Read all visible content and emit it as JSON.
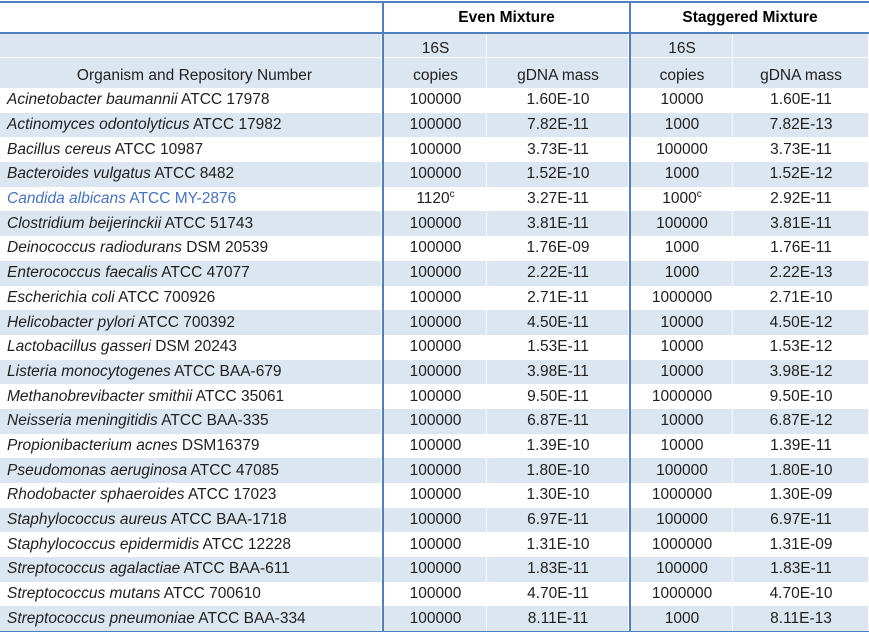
{
  "table": {
    "group_headers": {
      "even": "Even Mixture",
      "staggered": "Staggered Mixture"
    },
    "organism_header": "Organism and Repository Number",
    "subheaders": {
      "copies_line1": "16S",
      "copies_line2": "copies",
      "gdna": "gDNA mass"
    },
    "footnote_marker": "c",
    "colors": {
      "border_blue": "#4F81BD",
      "stripe_fill": "#DCE6F1",
      "highlight_text": "#4472C4",
      "body_text": "#212121"
    },
    "rows": [
      {
        "species": "Acinetobacter baumannii",
        "repo": "ATCC 17978",
        "even_copies": "100000",
        "even_sup": "",
        "even_mass": "1.60E-10",
        "stag_copies": "10000",
        "stag_sup": "",
        "stag_mass": "1.60E-11",
        "highlight": false
      },
      {
        "species": "Actinomyces odontolyticus",
        "repo": "ATCC 17982",
        "even_copies": "100000",
        "even_sup": "",
        "even_mass": "7.82E-11",
        "stag_copies": "1000",
        "stag_sup": "",
        "stag_mass": "7.82E-13",
        "highlight": false
      },
      {
        "species": "Bacillus cereus",
        "repo": "ATCC 10987",
        "even_copies": "100000",
        "even_sup": "",
        "even_mass": "3.73E-11",
        "stag_copies": "100000",
        "stag_sup": "",
        "stag_mass": "3.73E-11",
        "highlight": false
      },
      {
        "species": "Bacteroides vulgatus",
        "repo": "ATCC 8482",
        "even_copies": "100000",
        "even_sup": "",
        "even_mass": "1.52E-10",
        "stag_copies": "1000",
        "stag_sup": "",
        "stag_mass": "1.52E-12",
        "highlight": false
      },
      {
        "species": "Candida albicans",
        "repo": "ATCC MY-2876",
        "even_copies": "1120",
        "even_sup": "c",
        "even_mass": "3.27E-11",
        "stag_copies": "1000",
        "stag_sup": "c",
        "stag_mass": "2.92E-11",
        "highlight": true
      },
      {
        "species": "Clostridium beijerinckii",
        "repo": "ATCC 51743",
        "even_copies": "100000",
        "even_sup": "",
        "even_mass": "3.81E-11",
        "stag_copies": "100000",
        "stag_sup": "",
        "stag_mass": "3.81E-11",
        "highlight": false
      },
      {
        "species": "Deinococcus radiodurans",
        "repo": "DSM 20539",
        "even_copies": "100000",
        "even_sup": "",
        "even_mass": "1.76E-09",
        "stag_copies": "1000",
        "stag_sup": "",
        "stag_mass": "1.76E-11",
        "highlight": false
      },
      {
        "species": "Enterococcus faecalis",
        "repo": "ATCC 47077",
        "even_copies": "100000",
        "even_sup": "",
        "even_mass": "2.22E-11",
        "stag_copies": "1000",
        "stag_sup": "",
        "stag_mass": "2.22E-13",
        "highlight": false
      },
      {
        "species": "Escherichia coli",
        "repo": "ATCC 700926",
        "even_copies": "100000",
        "even_sup": "",
        "even_mass": "2.71E-11",
        "stag_copies": "1000000",
        "stag_sup": "",
        "stag_mass": "2.71E-10",
        "highlight": false
      },
      {
        "species": "Helicobacter pylori",
        "repo": "ATCC 700392",
        "even_copies": "100000",
        "even_sup": "",
        "even_mass": "4.50E-11",
        "stag_copies": "10000",
        "stag_sup": "",
        "stag_mass": "4.50E-12",
        "highlight": false
      },
      {
        "species": "Lactobacillus gasseri",
        "repo": "DSM 20243",
        "even_copies": "100000",
        "even_sup": "",
        "even_mass": "1.53E-11",
        "stag_copies": "10000",
        "stag_sup": "",
        "stag_mass": "1.53E-12",
        "highlight": false
      },
      {
        "species": "Listeria monocytogenes",
        "repo": "ATCC BAA-679",
        "even_copies": "100000",
        "even_sup": "",
        "even_mass": "3.98E-11",
        "stag_copies": "10000",
        "stag_sup": "",
        "stag_mass": "3.98E-12",
        "highlight": false
      },
      {
        "species": "Methanobrevibacter smithii",
        "repo": "ATCC 35061",
        "even_copies": "100000",
        "even_sup": "",
        "even_mass": "9.50E-11",
        "stag_copies": "1000000",
        "stag_sup": "",
        "stag_mass": "9.50E-10",
        "highlight": false
      },
      {
        "species": "Neisseria meningitidis",
        "repo": "ATCC BAA-335",
        "even_copies": "100000",
        "even_sup": "",
        "even_mass": "6.87E-11",
        "stag_copies": "10000",
        "stag_sup": "",
        "stag_mass": "6.87E-12",
        "highlight": false
      },
      {
        "species": "Propionibacterium acnes",
        "repo": "DSM16379",
        "even_copies": "100000",
        "even_sup": "",
        "even_mass": "1.39E-10",
        "stag_copies": "10000",
        "stag_sup": "",
        "stag_mass": "1.39E-11",
        "highlight": false
      },
      {
        "species": "Pseudomonas aeruginosa",
        "repo": "ATCC 47085",
        "even_copies": "100000",
        "even_sup": "",
        "even_mass": "1.80E-10",
        "stag_copies": "100000",
        "stag_sup": "",
        "stag_mass": "1.80E-10",
        "highlight": false
      },
      {
        "species": "Rhodobacter sphaeroides",
        "repo": "ATCC 17023",
        "even_copies": "100000",
        "even_sup": "",
        "even_mass": "1.30E-10",
        "stag_copies": "1000000",
        "stag_sup": "",
        "stag_mass": "1.30E-09",
        "highlight": false
      },
      {
        "species": "Staphylococcus aureus",
        "repo": "ATCC BAA-1718",
        "even_copies": "100000",
        "even_sup": "",
        "even_mass": "6.97E-11",
        "stag_copies": "100000",
        "stag_sup": "",
        "stag_mass": "6.97E-11",
        "highlight": false
      },
      {
        "species": "Staphylococcus epidermidis",
        "repo": "ATCC 12228",
        "even_copies": "100000",
        "even_sup": "",
        "even_mass": "1.31E-10",
        "stag_copies": "1000000",
        "stag_sup": "",
        "stag_mass": "1.31E-09",
        "highlight": false
      },
      {
        "species": "Streptococcus agalactiae",
        "repo": "ATCC BAA-611",
        "even_copies": "100000",
        "even_sup": "",
        "even_mass": "1.83E-11",
        "stag_copies": "100000",
        "stag_sup": "",
        "stag_mass": "1.83E-11",
        "highlight": false
      },
      {
        "species": "Streptococcus mutans",
        "repo": "ATCC 700610",
        "even_copies": "100000",
        "even_sup": "",
        "even_mass": "4.70E-11",
        "stag_copies": "1000000",
        "stag_sup": "",
        "stag_mass": "4.70E-10",
        "highlight": false
      },
      {
        "species": "Streptococcus pneumoniae",
        "repo": "ATCC BAA-334",
        "even_copies": "100000",
        "even_sup": "",
        "even_mass": "8.11E-11",
        "stag_copies": "1000",
        "stag_sup": "",
        "stag_mass": "8.11E-13",
        "highlight": false
      }
    ]
  }
}
